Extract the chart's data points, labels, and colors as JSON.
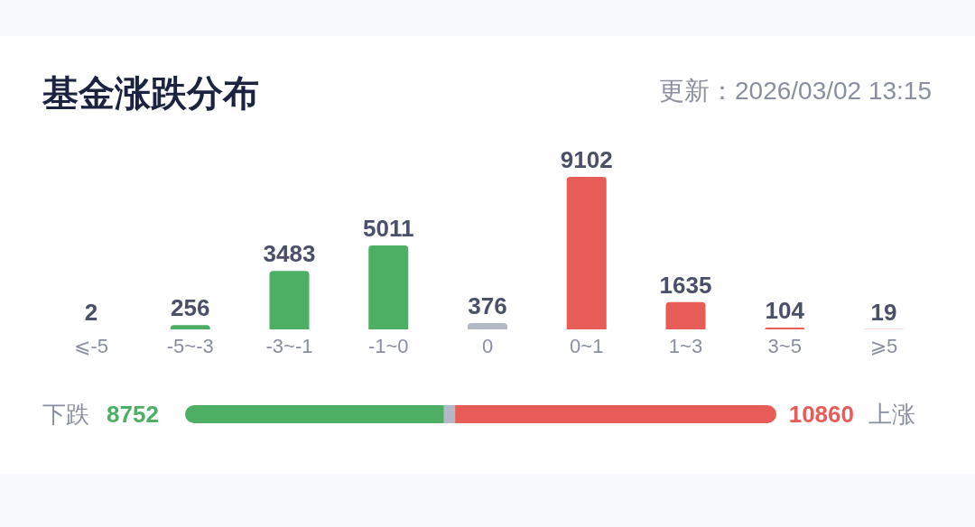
{
  "chart_data": [
    {
      "type": "bar",
      "title": "基金涨跌分布",
      "subtitle": "更新：2026/03/02 13:15",
      "categories": [
        "⩽-5",
        "-5~-3",
        "-3~-1",
        "-1~0",
        "0",
        "0~1",
        "1~3",
        "3~5",
        "⩾5"
      ],
      "values": [
        2,
        256,
        3483,
        5011,
        376,
        9102,
        1635,
        104,
        19
      ],
      "colors": [
        "#4caf64",
        "#4caf64",
        "#4caf64",
        "#4caf64",
        "#b4b9c6",
        "#e85c58",
        "#e85c58",
        "#e85c58",
        "#e85c58"
      ],
      "data_labels": true
    },
    {
      "type": "bar",
      "orientation": "horizontal",
      "stacked": true,
      "categories": [
        null
      ],
      "annotations": [
        "下跌",
        "上涨"
      ],
      "series": [
        {
          "color": "#4caf64",
          "values": [
            8752
          ],
          "value_labels": [
            "8752"
          ]
        },
        {
          "color": "#b4b9c6",
          "values": [
            376
          ]
        },
        {
          "color": "#e85c58",
          "values": [
            10860
          ],
          "value_labels": [
            "10860"
          ]
        }
      ]
    }
  ]
}
